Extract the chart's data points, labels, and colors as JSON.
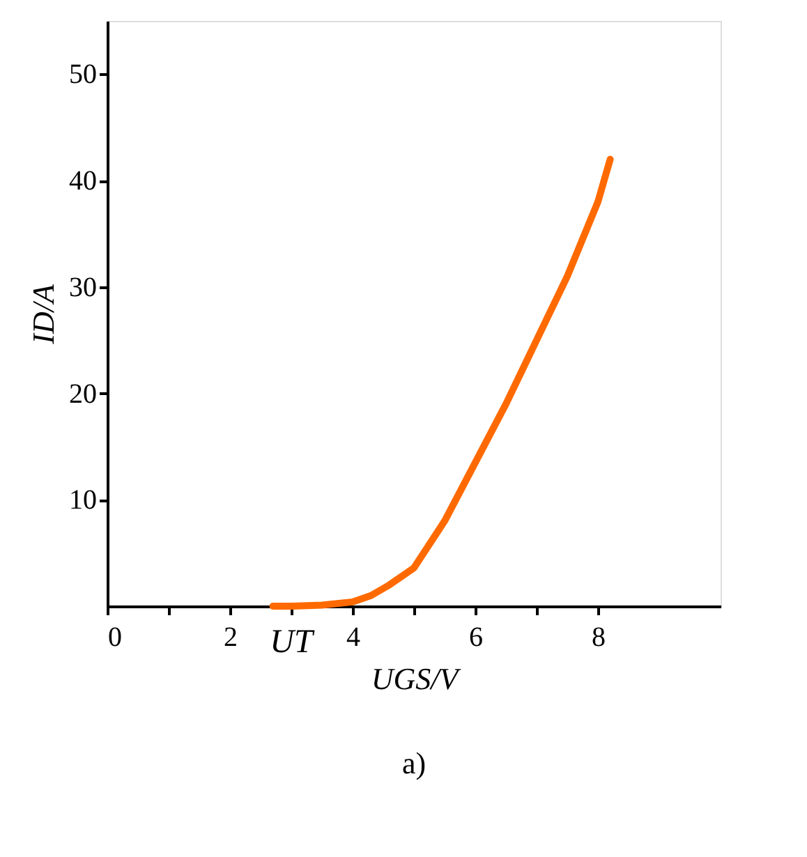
{
  "chart_data": {
    "type": "line",
    "xlabel": "UGS/V",
    "ylabel": "ID/A",
    "x": [
      2.7,
      3,
      3.5,
      4,
      4.3,
      4.6,
      5,
      5.5,
      6,
      6.5,
      7,
      7.5,
      8,
      8.2
    ],
    "series": [
      {
        "color": "#ff6a00",
        "values": [
          0,
          0,
          0.1,
          0.4,
          1,
          2,
          3.6,
          8,
          13.5,
          19,
          25,
          31,
          38,
          42
        ]
      }
    ],
    "xlim": [
      0,
      10
    ],
    "ylim": [
      0,
      55
    ],
    "xticks": [
      0,
      {
        "value": 1,
        "label": null
      },
      2,
      {
        "value": 3,
        "label": null
      },
      4,
      {
        "value": 5,
        "label": null
      },
      6,
      {
        "value": 7,
        "label": null
      },
      8
    ],
    "yticks": [
      10,
      20,
      30,
      40,
      50
    ],
    "grid": false,
    "marker": "none",
    "line_style": "solid",
    "annotations": [
      {
        "text": "UT",
        "x": 3,
        "y": 0
      },
      "a)"
    ]
  }
}
